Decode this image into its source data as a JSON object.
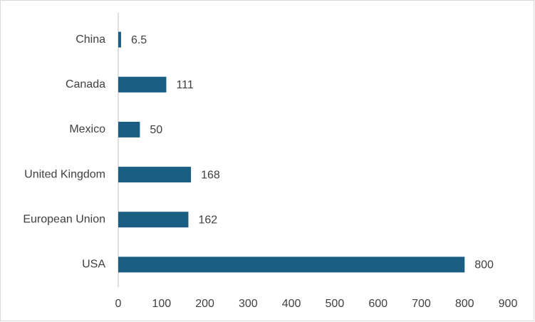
{
  "chart_data": {
    "type": "hbar",
    "categories": [
      "China",
      "Canada",
      "Mexico",
      "United Kingdom",
      "European Union",
      "USA"
    ],
    "values": [
      6.5,
      111,
      50,
      168,
      162,
      800
    ],
    "color": "#1b5e83",
    "xlim": [
      0,
      900
    ],
    "xticks": [
      0,
      100,
      200,
      300,
      400,
      500,
      600,
      700,
      800,
      900
    ],
    "grid": false
  }
}
